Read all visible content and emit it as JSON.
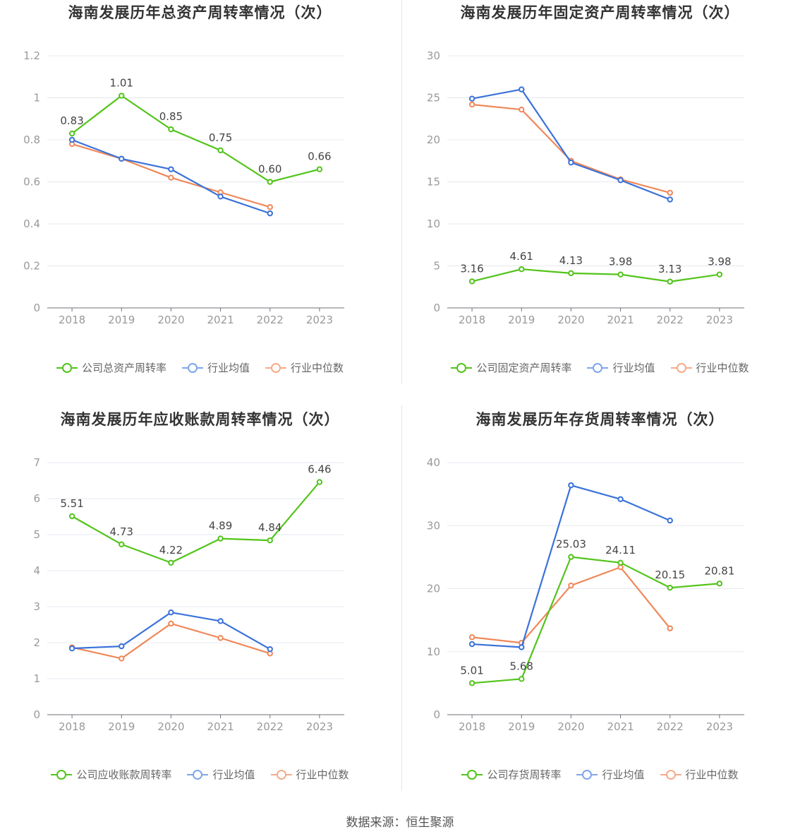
{
  "source_text": "数据来源：恒生聚源",
  "colors": {
    "company": "#52c41a",
    "industry_avg": "#3a72d9",
    "industry_median": "#f0885a"
  },
  "chart_data": [
    {
      "type": "line",
      "title": "海南发展历年总资产周转率情况（次）",
      "x": [
        "2018",
        "2019",
        "2020",
        "2021",
        "2022",
        "2023"
      ],
      "ylim": [
        0,
        1.2
      ],
      "yticks": [
        0,
        0.2,
        0.4,
        0.6,
        0.8,
        1,
        1.2
      ],
      "ytick_labels": [
        "0",
        "0.2",
        "0.4",
        "0.6",
        "0.8",
        "1",
        "1.2"
      ],
      "grid": true,
      "legend_position": "bottom",
      "series": [
        {
          "name": "公司总资产周转率",
          "values": [
            0.83,
            1.01,
            0.85,
            0.75,
            0.6,
            0.66
          ],
          "labels": [
            "0.83",
            "1.01",
            "0.85",
            "0.75",
            "0.60",
            "0.66"
          ]
        },
        {
          "name": "行业均值",
          "values": [
            0.8,
            0.71,
            0.66,
            0.53,
            0.45,
            null
          ]
        },
        {
          "name": "行业中位数",
          "values": [
            0.78,
            0.71,
            0.62,
            0.55,
            0.48,
            null
          ]
        }
      ]
    },
    {
      "type": "line",
      "title": "海南发展历年固定资产周转率情况（次）",
      "x": [
        "2018",
        "2019",
        "2020",
        "2021",
        "2022",
        "2023"
      ],
      "ylim": [
        0,
        30
      ],
      "yticks": [
        0,
        5,
        10,
        15,
        20,
        25,
        30
      ],
      "ytick_labels": [
        "0",
        "5",
        "10",
        "15",
        "20",
        "25",
        "30"
      ],
      "grid": true,
      "legend_position": "bottom",
      "series": [
        {
          "name": "公司固定资产周转率",
          "values": [
            3.16,
            4.61,
            4.13,
            3.98,
            3.13,
            3.98
          ],
          "labels": [
            "3.16",
            "4.61",
            "4.13",
            "3.98",
            "3.13",
            "3.98"
          ]
        },
        {
          "name": "行业均值",
          "values": [
            24.9,
            26.0,
            17.3,
            15.2,
            12.9,
            null
          ]
        },
        {
          "name": "行业中位数",
          "values": [
            24.2,
            23.6,
            17.5,
            15.3,
            13.7,
            null
          ]
        }
      ]
    },
    {
      "type": "line",
      "title": "海南发展历年应收账款周转率情况（次）",
      "x": [
        "2018",
        "2019",
        "2020",
        "2021",
        "2022",
        "2023"
      ],
      "ylim": [
        0,
        7
      ],
      "yticks": [
        0,
        1,
        2,
        3,
        4,
        5,
        6,
        7
      ],
      "ytick_labels": [
        "0",
        "1",
        "2",
        "3",
        "4",
        "5",
        "6",
        "7"
      ],
      "grid": true,
      "legend_position": "bottom",
      "series": [
        {
          "name": "公司应收账款周转率",
          "values": [
            5.51,
            4.73,
            4.22,
            4.89,
            4.84,
            6.46
          ],
          "labels": [
            "5.51",
            "4.73",
            "4.22",
            "4.89",
            "4.84",
            "6.46"
          ]
        },
        {
          "name": "行业均值",
          "values": [
            1.84,
            1.9,
            2.84,
            2.6,
            1.82,
            null
          ]
        },
        {
          "name": "行业中位数",
          "values": [
            1.87,
            1.56,
            2.53,
            2.13,
            1.7,
            null
          ]
        }
      ]
    },
    {
      "type": "line",
      "title": "海南发展历年存货周转率情况（次）",
      "x": [
        "2018",
        "2019",
        "2020",
        "2021",
        "2022",
        "2023"
      ],
      "ylim": [
        0,
        40
      ],
      "yticks": [
        0,
        10,
        20,
        30,
        40
      ],
      "ytick_labels": [
        "0",
        "10",
        "20",
        "30",
        "40"
      ],
      "grid": true,
      "legend_position": "bottom",
      "series": [
        {
          "name": "公司存货周转率",
          "values": [
            5.01,
            5.68,
            25.03,
            24.11,
            20.15,
            20.81
          ],
          "labels": [
            "5.01",
            "5.68",
            "25.03",
            "24.11",
            "20.15",
            "20.81"
          ]
        },
        {
          "name": "行业均值",
          "values": [
            11.2,
            10.7,
            36.4,
            34.2,
            30.8,
            null
          ]
        },
        {
          "name": "行业中位数",
          "values": [
            12.3,
            11.4,
            20.5,
            23.4,
            13.7,
            null
          ]
        }
      ]
    }
  ]
}
